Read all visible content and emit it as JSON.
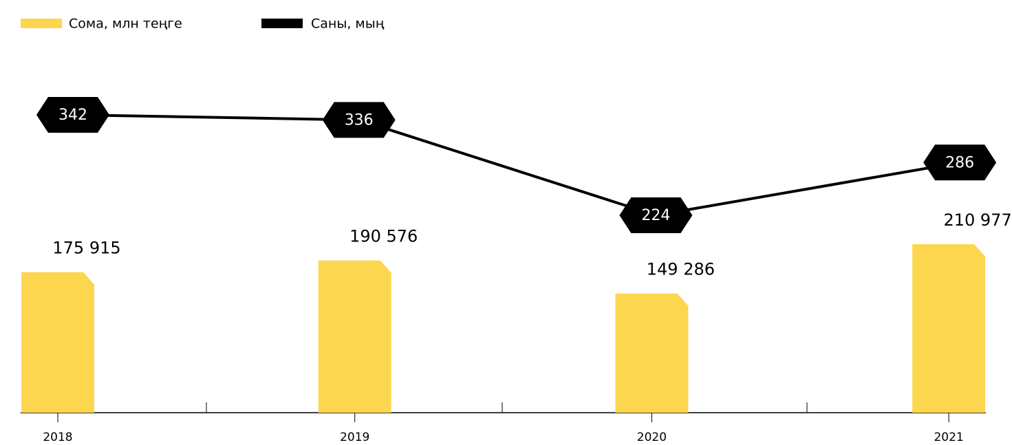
{
  "chart_data": {
    "type": "bar-line",
    "categories": [
      "2018",
      "2019",
      "2020",
      "2021"
    ],
    "series": [
      {
        "name": "Сома, млн теңге",
        "type": "bar",
        "color": "#fdd650",
        "values": [
          175915,
          190576,
          149286,
          210977
        ],
        "value_labels": [
          "175 915",
          "190 576",
          "149 286",
          "210 977"
        ]
      },
      {
        "name": "Саны, мың",
        "type": "line",
        "axis": "y2",
        "color": "#000000",
        "values": [
          342,
          336,
          224,
          286
        ]
      }
    ]
  }
}
